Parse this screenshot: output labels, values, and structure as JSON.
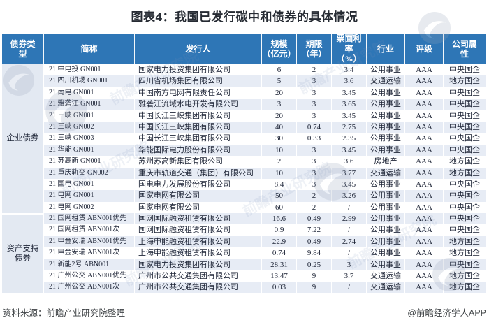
{
  "title": "图表4：我国已发行碳中和债券的具体情况",
  "colors": {
    "header_bg": "#2E76B6",
    "header_text": "#FFFFFF",
    "row_alt_bg": "#E7ECF5",
    "group_bg": "#E3E9F2",
    "body_text": "#1C2335"
  },
  "table_header": {
    "labels": [
      "债券类\n型",
      "简称",
      "发行人",
      "规模\n（亿元）",
      "期限\n（年）",
      "票面利\n率\n（%）",
      "行业",
      "评级",
      "公司属\n性"
    ]
  },
  "chart_data": {
    "type": "table",
    "title": "图表4：我国已发行碳中和债券的具体情况",
    "columns": [
      "债券类型",
      "简称",
      "发行人",
      "规模（亿元）",
      "期限（年）",
      "票面利率（%）",
      "行业",
      "评级",
      "公司属性"
    ],
    "rows": [
      [
        "企业债券",
        "21 中电投 GN001",
        "国家电力投资集团有限公司",
        "6",
        "2",
        "3.4",
        "公用事业",
        "AAA",
        "中央国企"
      ],
      [
        "企业债券",
        "21 四川机场 GN001",
        "四川省机场集团有限公司",
        "5",
        "3",
        "3.6",
        "交通运输",
        "AAA",
        "地方国企"
      ],
      [
        "企业债券",
        "21 南电 GN001",
        "中国南方电网有限责任公司",
        "20",
        "3",
        "3.45",
        "公用事业",
        "AAA",
        "中央国企"
      ],
      [
        "企业债券",
        "21 雅砻江 GN001",
        "雅砻江流域水电开发有限公司",
        "3",
        "3",
        "3.65",
        "公用事业",
        "AAA",
        "中央国企"
      ],
      [
        "企业债券",
        "21 三峡 GN001",
        "中国长江三峡集团有限公司",
        "20",
        "3",
        "3.45",
        "公用事业",
        "AAA",
        "中央国企"
      ],
      [
        "企业债券",
        "21 三峡 GN002",
        "中国长江三峡集团有限公司",
        "40",
        "0.74",
        "2.75",
        "公用事业",
        "AAA",
        "中央国企"
      ],
      [
        "企业债券",
        "21 三峡 GN003",
        "中国长江三峡集团有限公司",
        "30",
        "0.33",
        "2.35",
        "公用事业",
        "AAA",
        "中央国企"
      ],
      [
        "企业债券",
        "21 华能 GN001",
        "华能国际电力股份有限公司",
        "10",
        "3",
        "3.45",
        "公用事业",
        "AAA",
        "中央国企"
      ],
      [
        "企业债券",
        "21 苏高新 GN001",
        "苏州苏高新集团有限公司",
        "2",
        "3",
        "3.6",
        "房地产",
        "AAA",
        "地方国企"
      ],
      [
        "企业债券",
        "21 重庆轨交 GN002",
        "重庆市轨道交通（集团）有限公司",
        "10",
        "3",
        "3.77",
        "交通运输",
        "AAA",
        "地方国企"
      ],
      [
        "企业债券",
        "21 国电 GN001",
        "国电电力发展股份有限公司",
        "8.4",
        "3",
        "3.45",
        "公用事业",
        "AAA",
        "中央国企"
      ],
      [
        "企业债券",
        "21 电网 GN001",
        "国家电网有限公司",
        "50",
        "2",
        "3.26",
        "公用事业",
        "AAA",
        "中央国企"
      ],
      [
        "企业债券",
        "21 电网 GN002",
        "国家电网有限公司",
        "60",
        "2",
        "/",
        "公用事业",
        "AAA",
        "中央国企"
      ],
      [
        "资产支持债券",
        "21 国网租赁 ABN001优先",
        "国网国际融资租赁有限公司",
        "16.6",
        "0.49",
        "2.99",
        "公用事业",
        "AAA",
        "中央国企"
      ],
      [
        "资产支持债券",
        "21 国网租赁 ABN001次",
        "国网国际融资租赁有限公司",
        "0.9",
        "7.22",
        "/",
        "公用事业",
        "AAA",
        "中央国企"
      ],
      [
        "资产支持债券",
        "21 申金安瑞 ABN001优先",
        "上海申能融资租赁有限公司",
        "22.9",
        "0.49",
        "2.74",
        "公用事业",
        "AAA",
        "地方国企"
      ],
      [
        "资产支持债券",
        "21 申金安瑞 ABN001次",
        "上海申能融资租赁有限公司",
        "0.74",
        "9.84",
        "/",
        "公用事业",
        "AAA",
        "地方国企"
      ],
      [
        "资产支持债券",
        "21 新能2号 ABN001",
        "国家电力投资集团有限公司",
        "28.31",
        "0.25",
        "3",
        "公用事业",
        "AAA",
        "中央国企"
      ],
      [
        "资产支持债券",
        "21 广州公交 ABN001优先",
        "广州市公共交通集团有限公司",
        "13.47",
        "9",
        "3.7",
        "交通运输",
        "AAA",
        "地方国企"
      ],
      [
        "资产支持债券",
        "21 广州公交 ABN001次",
        "广州市公共交通集团有限公司",
        "0.03",
        "9",
        "/",
        "交通运输",
        "AAA",
        "地方国企"
      ]
    ]
  },
  "footer": {
    "source": "资料来源：前瞻产业研究院整理",
    "credit": "@前瞻经济学人APP"
  },
  "watermark": {
    "text": "前瞻产业研究院"
  }
}
